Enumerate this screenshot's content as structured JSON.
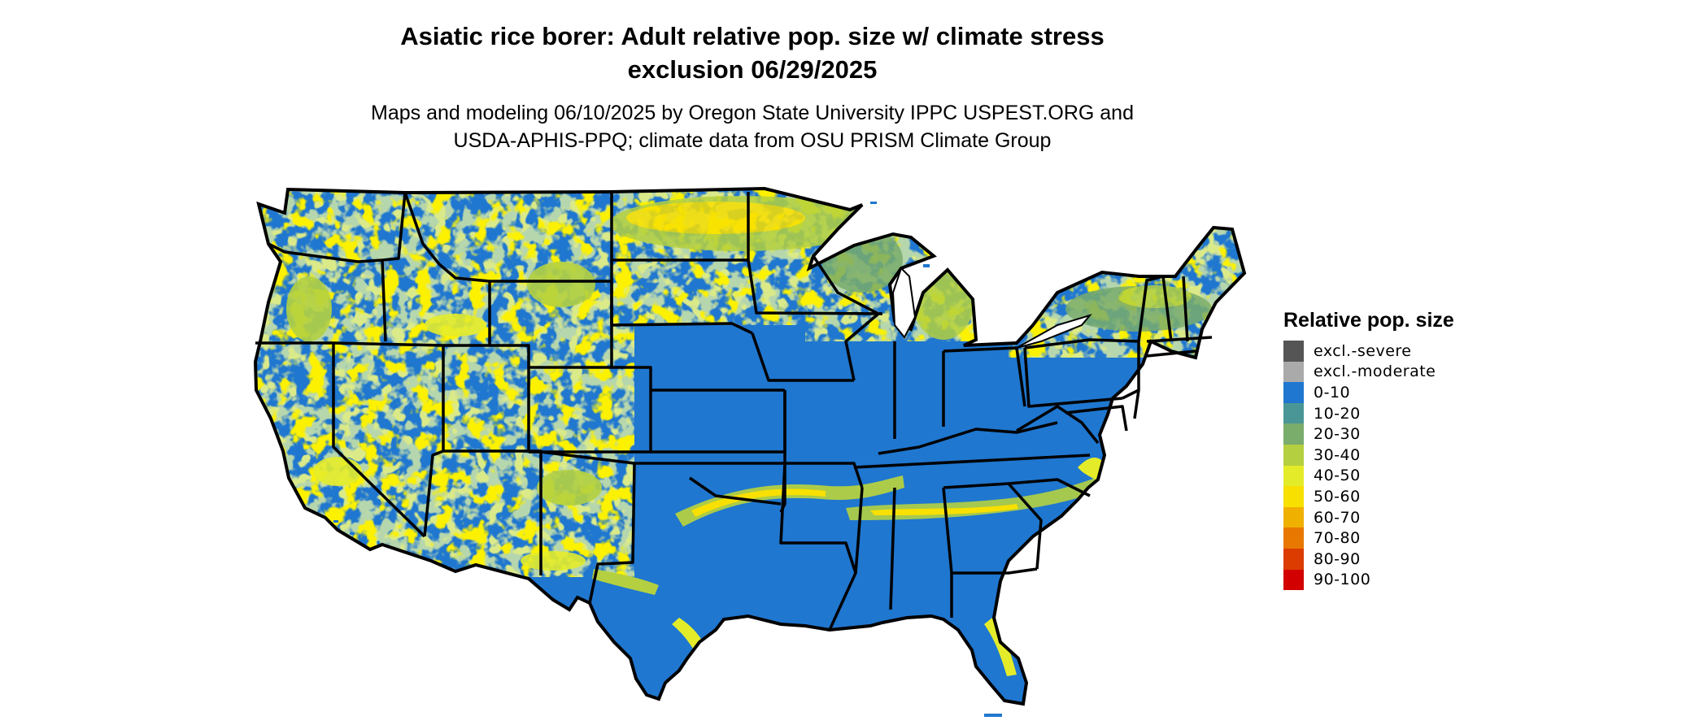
{
  "header": {
    "title_line1": "Asiatic rice borer: Adult relative pop. size w/ climate stress",
    "title_line2": "exclusion 06/29/2025",
    "subtitle_line1": "Maps and modeling 06/10/2025 by Oregon State University IPPC USPEST.ORG and",
    "subtitle_line2": "USDA-APHIS-PPQ; climate data from OSU PRISM Climate Group"
  },
  "legend": {
    "title": "Relative pop. size",
    "items": [
      {
        "label": "excl.-severe",
        "color": "#555555"
      },
      {
        "label": "excl.-moderate",
        "color": "#aaaaaa"
      },
      {
        "label": "0-10",
        "color": "#1f77d0"
      },
      {
        "label": "10-20",
        "color": "#4a9696"
      },
      {
        "label": "20-30",
        "color": "#7aac6c"
      },
      {
        "label": "30-40",
        "color": "#b4d040"
      },
      {
        "label": "40-50",
        "color": "#e4ec2a"
      },
      {
        "label": "50-60",
        "color": "#f8e000"
      },
      {
        "label": "60-70",
        "color": "#f0b000"
      },
      {
        "label": "70-80",
        "color": "#e87800"
      },
      {
        "label": "80-90",
        "color": "#dc3c00"
      },
      {
        "label": "90-100",
        "color": "#d20000"
      }
    ]
  },
  "map": {
    "region": "conterminous-us",
    "base_color": "#1f77d0",
    "border_color": "#000000"
  }
}
